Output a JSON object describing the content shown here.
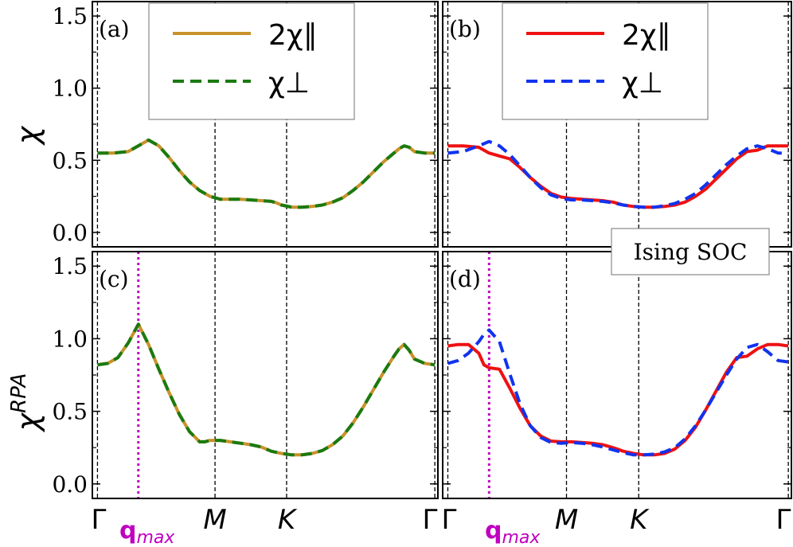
{
  "chart_data": [
    {
      "panel": "(a)",
      "type": "line",
      "ylabel": "χ",
      "ylim": [
        -0.1,
        1.6
      ],
      "x_ticks": [
        "Γ",
        "M",
        "K",
        "Γ"
      ],
      "series": [
        {
          "name": "2χ∥",
          "color": "#c8922a",
          "style": "solid",
          "x": [
            0,
            0.15,
            0.3,
            0.5,
            0.6,
            0.7,
            0.8,
            0.9,
            1.0,
            1.1,
            1.2,
            1.3,
            1.4,
            1.5,
            1.6,
            1.7,
            1.75,
            1.8,
            1.9,
            2.0,
            2.1,
            2.2,
            2.3,
            2.4,
            2.5,
            2.6,
            2.7,
            2.8,
            2.9,
            2.95,
            3.0,
            3.05,
            3.1,
            3.2,
            3.3
          ],
          "y": [
            0.55,
            0.55,
            0.56,
            0.64,
            0.6,
            0.52,
            0.43,
            0.35,
            0.29,
            0.25,
            0.23,
            0.23,
            0.23,
            0.225,
            0.22,
            0.215,
            0.205,
            0.19,
            0.175,
            0.175,
            0.18,
            0.19,
            0.21,
            0.24,
            0.29,
            0.35,
            0.42,
            0.49,
            0.55,
            0.58,
            0.6,
            0.59,
            0.56,
            0.55,
            0.55
          ]
        },
        {
          "name": "χ⊥",
          "color": "#1a7a10",
          "style": "dashed",
          "x": [
            0,
            0.15,
            0.3,
            0.5,
            0.6,
            0.7,
            0.8,
            0.9,
            1.0,
            1.1,
            1.2,
            1.3,
            1.4,
            1.5,
            1.6,
            1.7,
            1.75,
            1.8,
            1.9,
            2.0,
            2.1,
            2.2,
            2.3,
            2.4,
            2.5,
            2.6,
            2.7,
            2.8,
            2.9,
            2.95,
            3.0,
            3.05,
            3.1,
            3.2,
            3.3
          ],
          "y": [
            0.55,
            0.55,
            0.56,
            0.64,
            0.6,
            0.52,
            0.43,
            0.35,
            0.29,
            0.25,
            0.23,
            0.23,
            0.23,
            0.225,
            0.22,
            0.215,
            0.205,
            0.19,
            0.175,
            0.175,
            0.18,
            0.19,
            0.21,
            0.24,
            0.29,
            0.35,
            0.42,
            0.49,
            0.55,
            0.58,
            0.6,
            0.59,
            0.56,
            0.55,
            0.55
          ]
        }
      ]
    },
    {
      "panel": "(b)",
      "type": "line",
      "ylim": [
        -0.1,
        1.6
      ],
      "x_ticks": [
        "Γ",
        "M",
        "K",
        "Γ"
      ],
      "series": [
        {
          "name": "2χ∥",
          "color": "#ee1111",
          "style": "solid",
          "x": [
            0,
            0.15,
            0.3,
            0.4,
            0.5,
            0.6,
            0.7,
            0.8,
            0.9,
            1.0,
            1.1,
            1.2,
            1.3,
            1.4,
            1.5,
            1.6,
            1.7,
            1.8,
            1.9,
            2.0,
            2.1,
            2.2,
            2.3,
            2.4,
            2.5,
            2.6,
            2.7,
            2.8,
            2.9,
            3.0,
            3.1,
            3.2,
            3.3
          ],
          "y": [
            0.6,
            0.6,
            0.59,
            0.55,
            0.53,
            0.51,
            0.45,
            0.38,
            0.32,
            0.27,
            0.245,
            0.235,
            0.23,
            0.225,
            0.22,
            0.21,
            0.19,
            0.18,
            0.175,
            0.175,
            0.18,
            0.19,
            0.21,
            0.25,
            0.3,
            0.37,
            0.44,
            0.51,
            0.56,
            0.57,
            0.6,
            0.6,
            0.6
          ]
        },
        {
          "name": "χ⊥",
          "color": "#1133ee",
          "style": "dashed",
          "x": [
            0,
            0.15,
            0.3,
            0.4,
            0.5,
            0.6,
            0.7,
            0.8,
            0.9,
            1.0,
            1.1,
            1.2,
            1.3,
            1.4,
            1.5,
            1.6,
            1.7,
            1.8,
            1.9,
            2.0,
            2.1,
            2.2,
            2.3,
            2.4,
            2.5,
            2.6,
            2.7,
            2.8,
            2.9,
            3.0,
            3.1,
            3.2,
            3.3
          ],
          "y": [
            0.55,
            0.56,
            0.6,
            0.63,
            0.6,
            0.54,
            0.46,
            0.38,
            0.31,
            0.26,
            0.235,
            0.225,
            0.225,
            0.22,
            0.215,
            0.205,
            0.19,
            0.18,
            0.175,
            0.175,
            0.185,
            0.2,
            0.23,
            0.27,
            0.33,
            0.4,
            0.47,
            0.53,
            0.58,
            0.6,
            0.58,
            0.55,
            0.55
          ]
        }
      ]
    },
    {
      "panel": "(c)",
      "type": "line",
      "ylabel": "χRPA",
      "ylim": [
        -0.1,
        1.6
      ],
      "x_ticks": [
        "Γ",
        "M",
        "K",
        "Γ"
      ],
      "vline_label": "qmax",
      "vline_x": 0.4,
      "series": [
        {
          "name": "2χ∥",
          "color": "#c8922a",
          "style": "solid",
          "x": [
            0,
            0.1,
            0.2,
            0.3,
            0.4,
            0.5,
            0.6,
            0.7,
            0.8,
            0.9,
            1.0,
            1.05,
            1.1,
            1.2,
            1.3,
            1.4,
            1.5,
            1.6,
            1.7,
            1.8,
            1.9,
            2.0,
            2.1,
            2.2,
            2.3,
            2.4,
            2.5,
            2.6,
            2.7,
            2.8,
            2.9,
            2.95,
            3.0,
            3.05,
            3.1,
            3.2,
            3.3
          ],
          "y": [
            0.82,
            0.83,
            0.87,
            0.97,
            1.1,
            0.96,
            0.79,
            0.63,
            0.48,
            0.36,
            0.29,
            0.29,
            0.3,
            0.3,
            0.29,
            0.28,
            0.27,
            0.255,
            0.225,
            0.21,
            0.2,
            0.2,
            0.21,
            0.23,
            0.27,
            0.33,
            0.42,
            0.53,
            0.65,
            0.77,
            0.88,
            0.93,
            0.96,
            0.92,
            0.86,
            0.83,
            0.82
          ]
        },
        {
          "name": "χ⊥",
          "color": "#1a7a10",
          "style": "dashed",
          "x": [
            0,
            0.1,
            0.2,
            0.3,
            0.4,
            0.5,
            0.6,
            0.7,
            0.8,
            0.9,
            1.0,
            1.05,
            1.1,
            1.2,
            1.3,
            1.4,
            1.5,
            1.6,
            1.7,
            1.8,
            1.9,
            2.0,
            2.1,
            2.2,
            2.3,
            2.4,
            2.5,
            2.6,
            2.7,
            2.8,
            2.9,
            2.95,
            3.0,
            3.05,
            3.1,
            3.2,
            3.3
          ],
          "y": [
            0.82,
            0.83,
            0.87,
            0.97,
            1.1,
            0.96,
            0.79,
            0.63,
            0.48,
            0.36,
            0.29,
            0.29,
            0.3,
            0.3,
            0.29,
            0.28,
            0.27,
            0.255,
            0.225,
            0.21,
            0.2,
            0.2,
            0.21,
            0.23,
            0.27,
            0.33,
            0.42,
            0.53,
            0.65,
            0.77,
            0.88,
            0.93,
            0.96,
            0.92,
            0.86,
            0.83,
            0.82
          ]
        }
      ]
    },
    {
      "panel": "(d)",
      "type": "line",
      "ylim": [
        -0.1,
        1.6
      ],
      "x_ticks": [
        "Γ",
        "M",
        "K",
        "Γ"
      ],
      "vline_label": "qmax",
      "vline_x": 0.4,
      "series": [
        {
          "name": "2χ∥",
          "color": "#ee1111",
          "style": "solid",
          "x": [
            0,
            0.1,
            0.2,
            0.3,
            0.35,
            0.4,
            0.5,
            0.6,
            0.7,
            0.8,
            0.9,
            1.0,
            1.1,
            1.2,
            1.3,
            1.4,
            1.5,
            1.6,
            1.7,
            1.8,
            1.9,
            2.0,
            2.1,
            2.2,
            2.3,
            2.4,
            2.5,
            2.6,
            2.7,
            2.8,
            2.9,
            3.0,
            3.1,
            3.2,
            3.3
          ],
          "y": [
            0.95,
            0.96,
            0.96,
            0.9,
            0.82,
            0.8,
            0.79,
            0.66,
            0.52,
            0.4,
            0.33,
            0.295,
            0.29,
            0.29,
            0.285,
            0.28,
            0.27,
            0.25,
            0.225,
            0.21,
            0.2,
            0.2,
            0.21,
            0.24,
            0.3,
            0.39,
            0.51,
            0.64,
            0.77,
            0.87,
            0.88,
            0.93,
            0.96,
            0.96,
            0.95
          ]
        },
        {
          "name": "χ⊥",
          "color": "#1133ee",
          "style": "dashed",
          "x": [
            0,
            0.1,
            0.2,
            0.3,
            0.35,
            0.4,
            0.5,
            0.6,
            0.7,
            0.8,
            0.9,
            1.0,
            1.1,
            1.2,
            1.3,
            1.4,
            1.5,
            1.6,
            1.7,
            1.8,
            1.9,
            2.0,
            2.1,
            2.2,
            2.3,
            2.4,
            2.5,
            2.6,
            2.7,
            2.8,
            2.9,
            3.0,
            3.1,
            3.2,
            3.3
          ],
          "y": [
            0.83,
            0.85,
            0.9,
            0.98,
            1.03,
            1.06,
            0.98,
            0.76,
            0.55,
            0.4,
            0.32,
            0.285,
            0.28,
            0.285,
            0.28,
            0.27,
            0.255,
            0.235,
            0.215,
            0.2,
            0.2,
            0.205,
            0.22,
            0.25,
            0.31,
            0.4,
            0.51,
            0.63,
            0.75,
            0.86,
            0.94,
            0.96,
            0.91,
            0.85,
            0.84
          ]
        }
      ]
    }
  ],
  "x_tick_positions": [
    0,
    1.15,
    1.85,
    3.3
  ],
  "y_ticks": [
    "0.0",
    "0.5",
    "1.0",
    "1.5"
  ],
  "y_tick_values": [
    0.0,
    0.5,
    1.0,
    1.5
  ],
  "legend_a": {
    "items": [
      "2χ∥",
      "χ⊥"
    ]
  },
  "legend_b": {
    "items": [
      "2χ∥",
      "χ⊥"
    ]
  },
  "annotation": "Ising SOC",
  "qmax_label": "q",
  "qmax_sub": "max",
  "ylabel_top": "χ",
  "ylabel_bottom": "χ",
  "ylabel_bottom_sup": "RPA"
}
